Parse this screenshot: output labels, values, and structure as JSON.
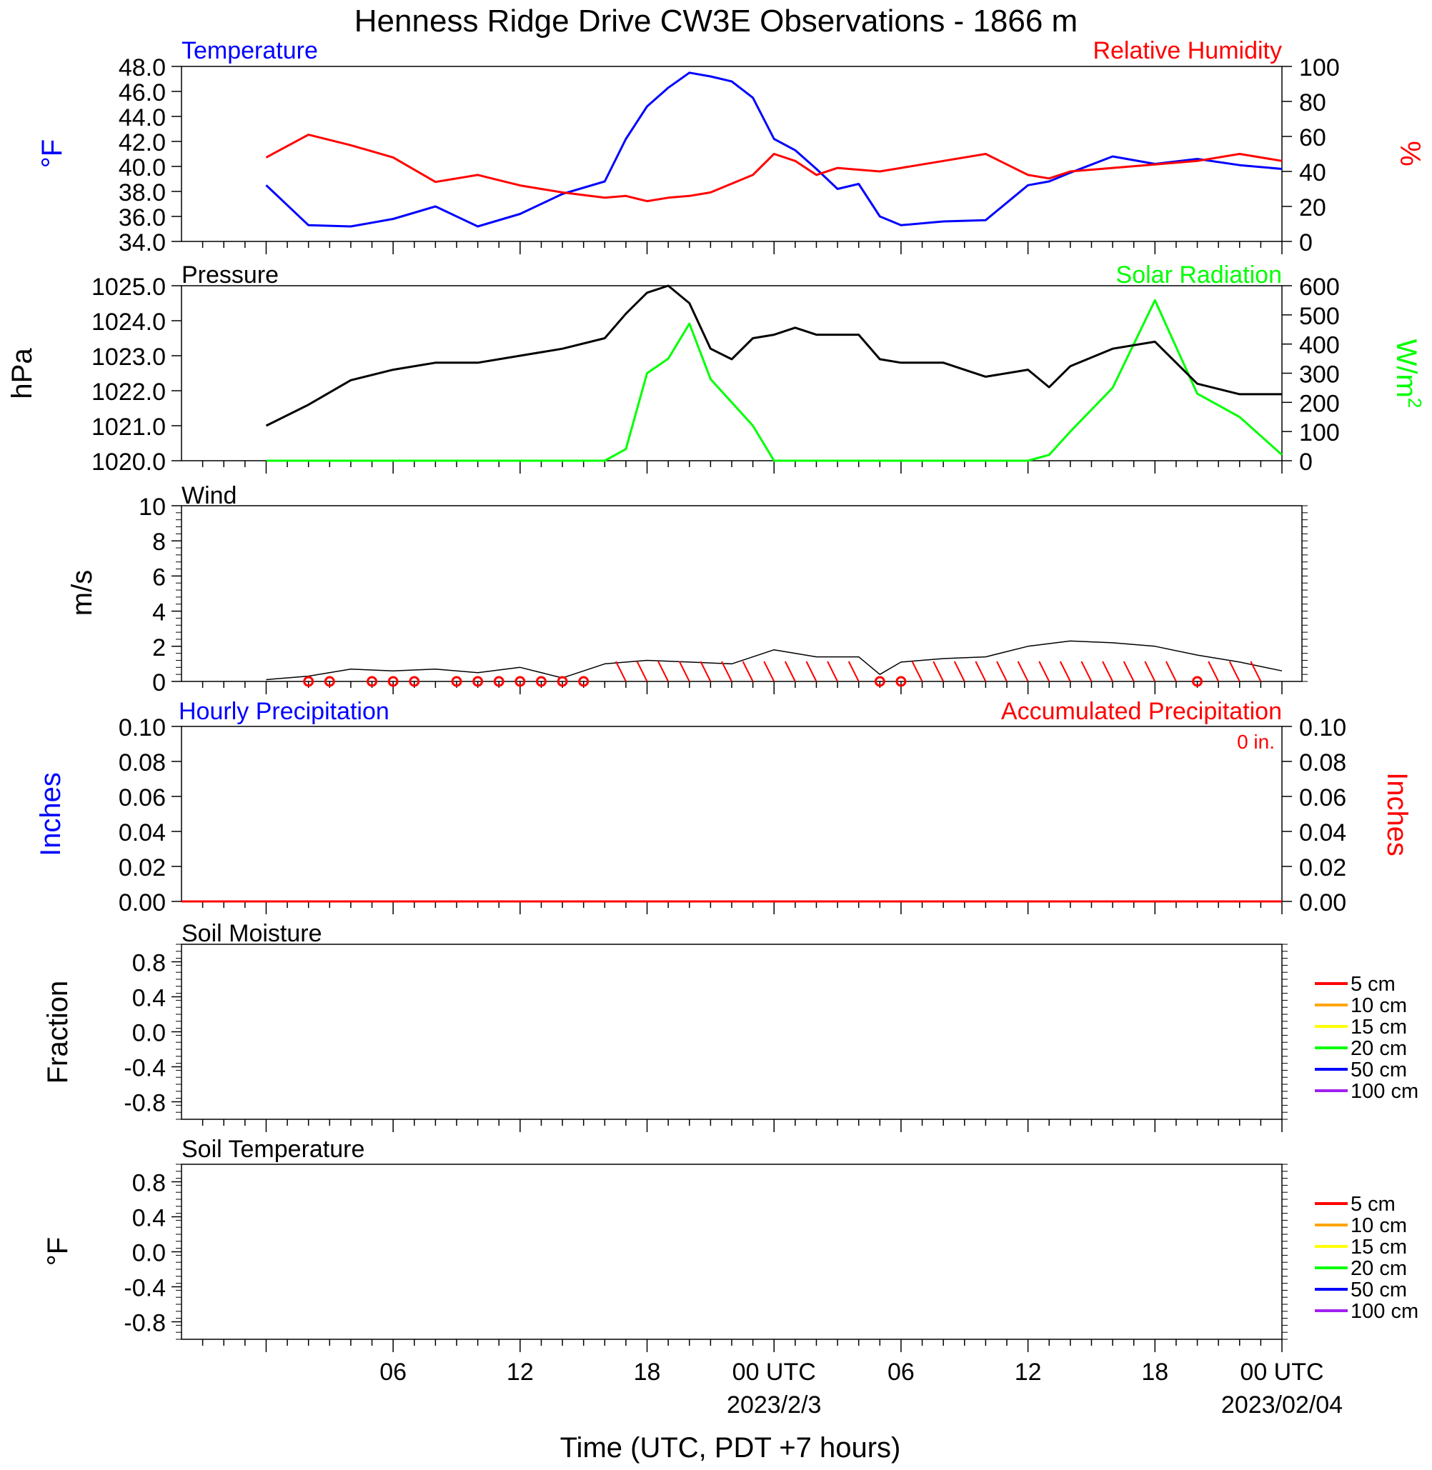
{
  "title": "Henness Ridge Drive CW3E Observations - 1866 m",
  "xlabel": "Time (UTC, PDT +7 hours)",
  "x_ticks": [
    {
      "label": "06",
      "date": ""
    },
    {
      "label": "12",
      "date": ""
    },
    {
      "label": "18",
      "date": ""
    },
    {
      "label": "00 UTC",
      "date": "2023/2/3"
    },
    {
      "label": "06",
      "date": ""
    },
    {
      "label": "12",
      "date": ""
    },
    {
      "label": "18",
      "date": ""
    },
    {
      "label": "00 UTC",
      "date": "2023/02/04"
    }
  ],
  "colors": {
    "temperature": "#0000ff",
    "humidity": "#ff0000",
    "pressure": "#000000",
    "solar": "#00ff00",
    "wind": "#000000",
    "barb": "#ff0000"
  },
  "chart_data": [
    {
      "type": "line",
      "title_left": "Temperature",
      "title_right": "Relative Humidity",
      "ylabel_left": "°F",
      "ylabel_right": "%",
      "ylim_left": [
        34.0,
        48.0
      ],
      "ylim_right": [
        0,
        100
      ],
      "yticks_left": [
        "34.0",
        "36.0",
        "38.0",
        "40.0",
        "42.0",
        "44.0",
        "46.0",
        "48.0"
      ],
      "yticks_right": [
        "0",
        "20",
        "40",
        "60",
        "80",
        "100"
      ],
      "x_hours": [
        0,
        2,
        4,
        6,
        8,
        10,
        12,
        14,
        16,
        17,
        18,
        19,
        20,
        21,
        22,
        23,
        24,
        25,
        26,
        27,
        28,
        29,
        30,
        32,
        34,
        36,
        37,
        38,
        40,
        42,
        44,
        46,
        48
      ],
      "series": [
        {
          "name": "Temperature",
          "axis": "left",
          "values": [
            38.5,
            35.3,
            35.2,
            35.8,
            36.8,
            35.2,
            36.2,
            37.8,
            38.8,
            42.2,
            44.8,
            46.3,
            47.5,
            47.2,
            46.8,
            45.5,
            42.2,
            41.3,
            39.8,
            38.2,
            38.6,
            36.0,
            35.3,
            35.6,
            35.7,
            38.5,
            38.8,
            39.5,
            40.8,
            40.2,
            40.6,
            40.1,
            39.8
          ]
        },
        {
          "name": "Relative Humidity",
          "axis": "right",
          "values": [
            48,
            61,
            55,
            48,
            34,
            38,
            32,
            28,
            25,
            26,
            23,
            25,
            26,
            28,
            33,
            38,
            50,
            46,
            38,
            42,
            41,
            40,
            42,
            46,
            50,
            38,
            36,
            40,
            42,
            44,
            46,
            50,
            46
          ]
        }
      ]
    },
    {
      "type": "line",
      "title_left": "Pressure",
      "title_right": "Solar Radiation",
      "ylabel_left": "hPa",
      "ylabel_right": "W/m",
      "ylabel_right_sup": "2",
      "ylim_left": [
        1020.0,
        1025.0
      ],
      "ylim_right": [
        0,
        600
      ],
      "yticks_left": [
        "1020.0",
        "1021.0",
        "1022.0",
        "1023.0",
        "1024.0",
        "1025.0"
      ],
      "yticks_right": [
        "0",
        "100",
        "200",
        "300",
        "400",
        "500",
        "600"
      ],
      "x_hours": [
        0,
        2,
        4,
        6,
        8,
        10,
        12,
        14,
        16,
        17,
        18,
        19,
        20,
        21,
        22,
        23,
        24,
        25,
        26,
        27,
        28,
        29,
        30,
        32,
        34,
        36,
        37,
        38,
        40,
        42,
        44,
        46,
        48
      ],
      "series": [
        {
          "name": "Pressure",
          "axis": "left",
          "values": [
            1021.0,
            1021.6,
            1022.3,
            1022.6,
            1022.8,
            1022.8,
            1023.0,
            1023.2,
            1023.5,
            1024.2,
            1024.8,
            1025.0,
            1024.5,
            1023.2,
            1022.9,
            1023.5,
            1023.6,
            1023.8,
            1023.6,
            1023.6,
            1023.6,
            1022.9,
            1022.8,
            1022.8,
            1022.4,
            1022.6,
            1022.1,
            1022.7,
            1023.2,
            1023.4,
            1022.2,
            1021.9,
            1021.9
          ]
        },
        {
          "name": "Solar Radiation",
          "axis": "right",
          "values": [
            0,
            0,
            0,
            0,
            0,
            0,
            0,
            0,
            0,
            40,
            300,
            350,
            470,
            280,
            200,
            120,
            0,
            0,
            0,
            0,
            0,
            0,
            0,
            0,
            0,
            0,
            20,
            100,
            250,
            550,
            230,
            150,
            20
          ]
        }
      ]
    },
    {
      "type": "line",
      "title": "Wind",
      "ylabel": "m/s",
      "ylim": [
        0,
        10
      ],
      "yticks": [
        "0",
        "2",
        "4",
        "6",
        "8",
        "10"
      ],
      "x_hours": [
        0,
        2,
        4,
        6,
        8,
        10,
        12,
        14,
        16,
        18,
        20,
        22,
        24,
        26,
        28,
        29,
        30,
        32,
        34,
        36,
        38,
        40,
        42,
        44,
        46,
        48
      ],
      "values": [
        0.1,
        0.3,
        0.7,
        0.6,
        0.7,
        0.5,
        0.8,
        0.2,
        1.0,
        1.2,
        1.1,
        1.0,
        1.8,
        1.4,
        1.4,
        0.4,
        1.1,
        1.3,
        1.4,
        2.0,
        2.3,
        2.2,
        2.0,
        1.5,
        1.1,
        0.6
      ],
      "calm_hours": [
        2,
        3,
        5,
        6,
        7,
        9,
        10,
        11,
        12,
        13,
        14,
        15,
        29,
        30,
        44
      ]
    },
    {
      "type": "line",
      "title_left": "Hourly Precipitation",
      "title_right": "Accumulated Precipitation",
      "annotation": "0 in.",
      "ylabel_left": "Inches",
      "ylabel_right": "Inches",
      "ylim_left": [
        0.0,
        0.1
      ],
      "ylim_right": [
        0.0,
        0.1
      ],
      "yticks_left": [
        "0.00",
        "0.02",
        "0.04",
        "0.06",
        "0.08",
        "0.10"
      ],
      "yticks_right": [
        "0.00",
        "0.02",
        "0.04",
        "0.06",
        "0.08",
        "0.10"
      ],
      "series": [
        {
          "name": "Hourly Precipitation",
          "axis": "left",
          "values": [
            0,
            0
          ]
        },
        {
          "name": "Accumulated Precipitation",
          "axis": "right",
          "values": [
            0,
            0
          ]
        }
      ]
    },
    {
      "type": "line",
      "title": "Soil Moisture",
      "ylabel": "Fraction",
      "ylim": [
        -1.0,
        1.0
      ],
      "yticks": [
        "-0.8",
        "-0.4",
        "0.0",
        "0.4",
        "0.8"
      ],
      "legend": [
        {
          "label": "5 cm",
          "color": "#ff0000"
        },
        {
          "label": "10 cm",
          "color": "#ffa500"
        },
        {
          "label": "15 cm",
          "color": "#ffff00"
        },
        {
          "label": "20 cm",
          "color": "#00ff00"
        },
        {
          "label": "50 cm",
          "color": "#0000ff"
        },
        {
          "label": "100 cm",
          "color": "#a020f0"
        }
      ],
      "legend_position": "right"
    },
    {
      "type": "line",
      "title": "Soil Temperature",
      "ylabel": "°F",
      "ylim": [
        -1.0,
        1.0
      ],
      "yticks": [
        "-0.8",
        "-0.4",
        "0.0",
        "0.4",
        "0.8"
      ],
      "legend": [
        {
          "label": "5 cm",
          "color": "#ff0000"
        },
        {
          "label": "10 cm",
          "color": "#ffa500"
        },
        {
          "label": "15 cm",
          "color": "#ffff00"
        },
        {
          "label": "20 cm",
          "color": "#00ff00"
        },
        {
          "label": "50 cm",
          "color": "#0000ff"
        },
        {
          "label": "100 cm",
          "color": "#a020f0"
        }
      ],
      "legend_position": "right"
    }
  ]
}
